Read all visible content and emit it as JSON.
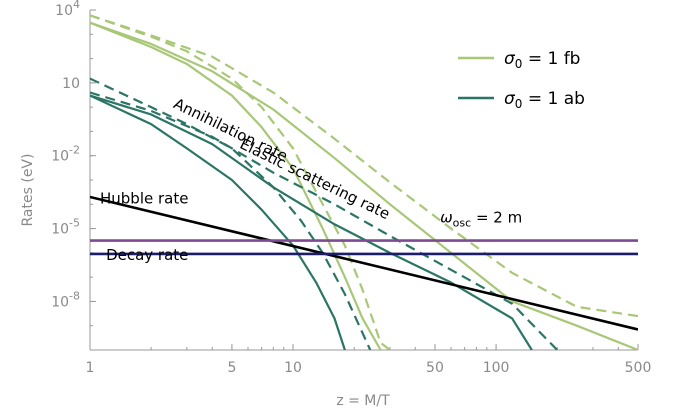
{
  "chart_data": {
    "type": "line",
    "xlabel": "z = M/T",
    "ylabel": "Rates (eV)",
    "x_scale": "log",
    "y_scale": "log",
    "xlim": [
      1,
      500
    ],
    "ylim": [
      1e-10,
      10000
    ],
    "x_ticks": [
      {
        "value": 1,
        "label": "1"
      },
      {
        "value": 5,
        "label": "5"
      },
      {
        "value": 10,
        "label": "10"
      },
      {
        "value": 50,
        "label": "50"
      },
      {
        "value": 100,
        "label": "100"
      },
      {
        "value": 500,
        "label": "500"
      }
    ],
    "y_ticks": [
      {
        "value": 10000,
        "base": "10",
        "exp": "4",
        "label": "10^4"
      },
      {
        "value": 10,
        "base": "10",
        "exp": "",
        "label": "10"
      },
      {
        "value": 0.01,
        "base": "10",
        "exp": "-2",
        "label": "10^-2"
      },
      {
        "value": 1e-05,
        "base": "10",
        "exp": "-5",
        "label": "10^-5"
      },
      {
        "value": 1e-08,
        "base": "10",
        "exp": "-8",
        "label": "10^-8"
      }
    ],
    "legend": {
      "placement": "top-right",
      "entries": [
        {
          "label": "σ0 = 1 fb",
          "sym": "σ",
          "sub": "0",
          "rest": " = 1 fb",
          "color": "#a8c878"
        },
        {
          "label": "σ0 = 1 ab",
          "sym": "σ",
          "sub": "0",
          "rest": " = 1 ab",
          "color": "#2a7565"
        }
      ]
    },
    "colors": {
      "fb": "#a8c878",
      "ab": "#2a7565",
      "hubble": "#000000",
      "oscillation": "#7e4a94",
      "decay": "#1c1c6c"
    },
    "annotations": [
      {
        "text": "Annihilation rate",
        "x": 2.55,
        "y": 1.0,
        "rotation": 26
      },
      {
        "text": "Elastic scattering rate",
        "x": 5.4,
        "y": 0.022,
        "rotation": 26
      },
      {
        "text": "Hubble rate",
        "x": 1.12,
        "y": 0.00011,
        "rotation": 0
      },
      {
        "text": "Decay rate",
        "x": 1.2,
        "y": 5e-07,
        "rotation": 0
      },
      {
        "text": "ω",
        "x": 53,
        "y": 1.8e-05,
        "rotation": 0,
        "sub": "osc",
        "rest": " = 2 m"
      }
    ],
    "series": [
      {
        "group": "fb",
        "dash": false,
        "points": [
          [
            1,
            3000
          ],
          [
            2,
            300
          ],
          [
            3,
            60
          ],
          [
            5,
            3
          ],
          [
            7,
            0.15
          ],
          [
            10,
            0.003
          ],
          [
            14,
            1e-05
          ],
          [
            18,
            1e-07
          ],
          [
            22,
            2e-09
          ],
          [
            27,
            1e-10
          ]
        ]
      },
      {
        "group": "fb",
        "dash": true,
        "points": [
          [
            1,
            6000
          ],
          [
            2,
            800
          ],
          [
            3,
            200
          ],
          [
            5,
            15
          ],
          [
            7,
            1
          ],
          [
            10,
            0.02
          ],
          [
            14,
            0.0001
          ],
          [
            18,
            2e-06
          ],
          [
            22,
            3e-08
          ],
          [
            27,
            2e-10
          ],
          [
            30,
            1e-10
          ]
        ]
      },
      {
        "group": "fb",
        "dash": false,
        "points": [
          [
            1,
            3000
          ],
          [
            2,
            400
          ],
          [
            4,
            30
          ],
          [
            8,
            0.8
          ],
          [
            16,
            0.008
          ],
          [
            30,
            0.0001
          ],
          [
            60,
            1e-06
          ],
          [
            120,
            1e-08
          ],
          [
            250,
            1e-09
          ],
          [
            500,
            1e-10
          ]
        ]
      },
      {
        "group": "fb",
        "dash": true,
        "points": [
          [
            1,
            6000
          ],
          [
            2,
            900
          ],
          [
            4,
            120
          ],
          [
            8,
            4
          ],
          [
            16,
            0.05
          ],
          [
            30,
            0.0008
          ],
          [
            60,
            1e-05
          ],
          [
            120,
            1.5e-07
          ],
          [
            250,
            6e-09
          ],
          [
            500,
            2.5e-09
          ]
        ]
      },
      {
        "group": "ab",
        "dash": false,
        "points": [
          [
            1,
            3
          ],
          [
            2,
            0.2
          ],
          [
            3,
            0.02
          ],
          [
            5,
            0.001
          ],
          [
            7,
            6e-05
          ],
          [
            10,
            2e-06
          ],
          [
            13,
            6e-08
          ],
          [
            16,
            2e-09
          ],
          [
            18,
            1e-10
          ]
        ]
      },
      {
        "group": "ab",
        "dash": true,
        "points": [
          [
            1,
            15
          ],
          [
            2,
            1
          ],
          [
            3,
            0.2
          ],
          [
            5,
            0.02
          ],
          [
            8,
            0.0005
          ],
          [
            11,
            2e-05
          ],
          [
            14,
            1e-06
          ],
          [
            18,
            2e-08
          ],
          [
            24,
            1e-10
          ]
        ]
      },
      {
        "group": "ab",
        "dash": false,
        "points": [
          [
            1,
            3
          ],
          [
            2,
            0.5
          ],
          [
            4,
            0.03
          ],
          [
            8,
            0.0005
          ],
          [
            16,
            1.5e-05
          ],
          [
            30,
            1e-06
          ],
          [
            60,
            6e-08
          ],
          [
            120,
            2e-09
          ],
          [
            150,
            1e-10
          ]
        ]
      },
      {
        "group": "ab",
        "dash": true,
        "points": [
          [
            1,
            4
          ],
          [
            2,
            0.7
          ],
          [
            4,
            0.06
          ],
          [
            8,
            0.002
          ],
          [
            16,
            0.0001
          ],
          [
            30,
            5e-06
          ],
          [
            60,
            2e-07
          ],
          [
            120,
            8e-09
          ],
          [
            200,
            1e-10
          ]
        ]
      },
      {
        "group": "hubble",
        "dash": false,
        "points": [
          [
            1,
            0.0002
          ],
          [
            500,
            7e-10
          ]
        ]
      },
      {
        "group": "oscillation",
        "dash": false,
        "points": [
          [
            1,
            3.2e-06
          ],
          [
            500,
            3.2e-06
          ]
        ]
      },
      {
        "group": "decay",
        "dash": false,
        "points": [
          [
            1,
            9e-07
          ],
          [
            500,
            9e-07
          ]
        ]
      }
    ]
  }
}
